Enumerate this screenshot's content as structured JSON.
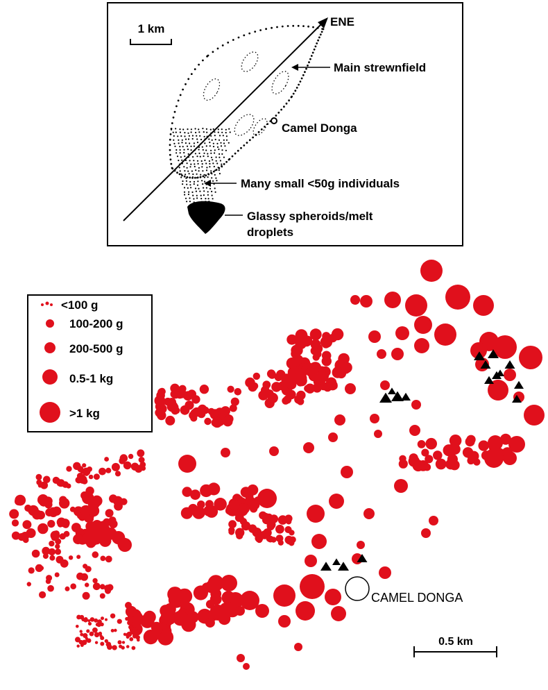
{
  "inset": {
    "scale_label": "1 km",
    "direction_label": "ENE",
    "labels": {
      "main_strewnfield": "Main strewnfield",
      "camel_donga": "Camel Donga",
      "small_individuals": "Many small <50g individuals",
      "glassy_line1": "Glassy spheroids/melt",
      "glassy_line2": "droplets"
    }
  },
  "legend": {
    "items": [
      {
        "label": "<100 g"
      },
      {
        "label": "100-200 g"
      },
      {
        "label": "200-500 g"
      },
      {
        "label": "0.5-1 kg"
      },
      {
        "label": ">1 kg"
      }
    ]
  },
  "map": {
    "site_label": "CAMEL DONGA",
    "scale_label": "0.5 km",
    "colors": {
      "meteorite": "#e0101c",
      "ink": "#000000"
    }
  }
}
